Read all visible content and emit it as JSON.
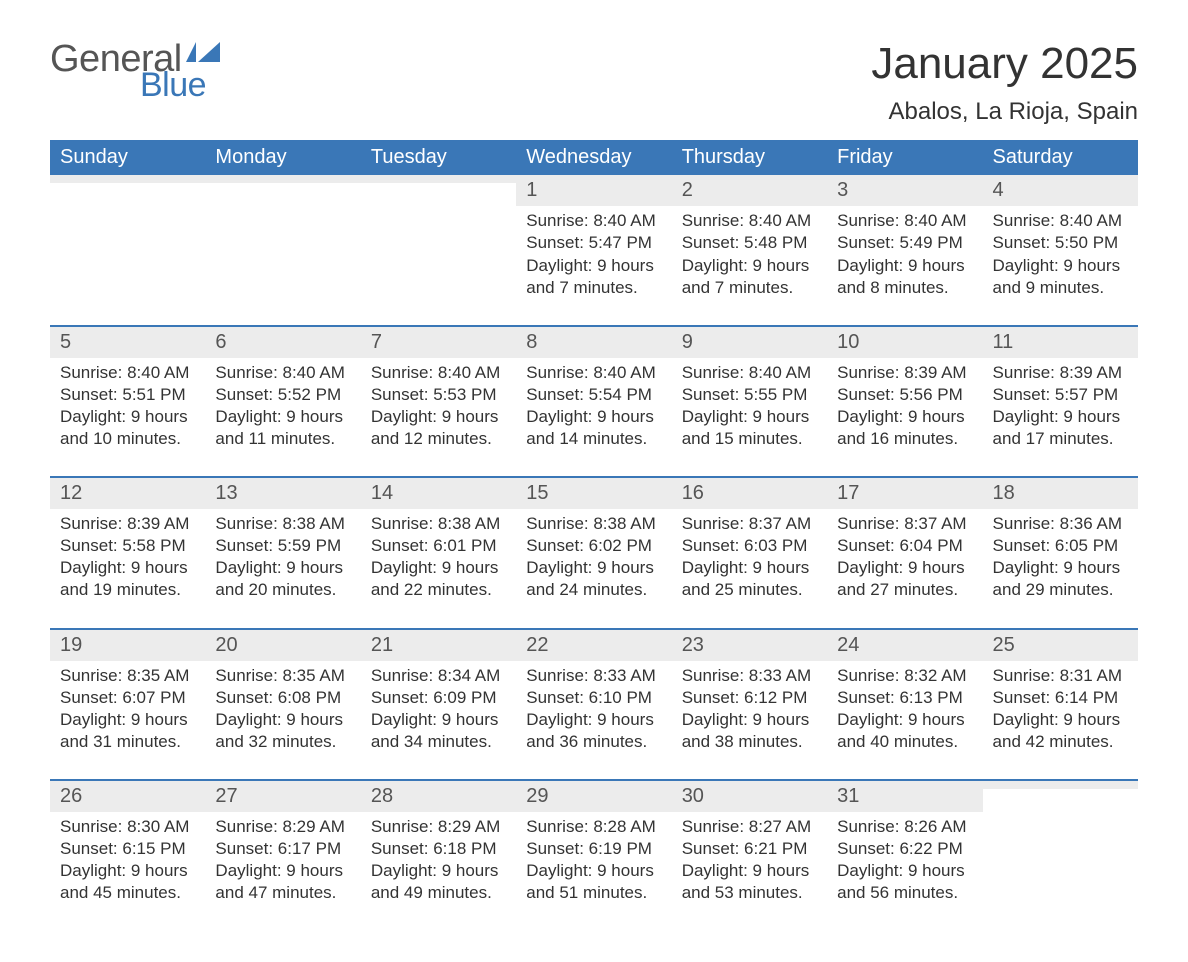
{
  "colors": {
    "header_bg": "#3a77b7",
    "header_text": "#ffffff",
    "daynum_bg": "#ececec",
    "daynum_text": "#555555",
    "body_text": "#333333",
    "week_border": "#3a77b7",
    "page_bg": "#ffffff",
    "logo_gray": "#555555",
    "logo_blue": "#3a77b7"
  },
  "typography": {
    "month_title_fontsize": 44,
    "location_fontsize": 24,
    "weekday_fontsize": 20,
    "daynum_fontsize": 20,
    "body_fontsize": 17,
    "logo_general_fontsize": 38,
    "logo_blue_fontsize": 34
  },
  "logo": {
    "text_general": "General",
    "text_blue": "Blue"
  },
  "title": "January 2025",
  "location": "Abalos, La Rioja, Spain",
  "weekdays": [
    "Sunday",
    "Monday",
    "Tuesday",
    "Wednesday",
    "Thursday",
    "Friday",
    "Saturday"
  ],
  "weeks": [
    [
      {
        "empty": true
      },
      {
        "empty": true
      },
      {
        "empty": true
      },
      {
        "day": "1",
        "sunrise": "Sunrise: 8:40 AM",
        "sunset": "Sunset: 5:47 PM",
        "dl1": "Daylight: 9 hours",
        "dl2": "and 7 minutes."
      },
      {
        "day": "2",
        "sunrise": "Sunrise: 8:40 AM",
        "sunset": "Sunset: 5:48 PM",
        "dl1": "Daylight: 9 hours",
        "dl2": "and 7 minutes."
      },
      {
        "day": "3",
        "sunrise": "Sunrise: 8:40 AM",
        "sunset": "Sunset: 5:49 PM",
        "dl1": "Daylight: 9 hours",
        "dl2": "and 8 minutes."
      },
      {
        "day": "4",
        "sunrise": "Sunrise: 8:40 AM",
        "sunset": "Sunset: 5:50 PM",
        "dl1": "Daylight: 9 hours",
        "dl2": "and 9 minutes."
      }
    ],
    [
      {
        "day": "5",
        "sunrise": "Sunrise: 8:40 AM",
        "sunset": "Sunset: 5:51 PM",
        "dl1": "Daylight: 9 hours",
        "dl2": "and 10 minutes."
      },
      {
        "day": "6",
        "sunrise": "Sunrise: 8:40 AM",
        "sunset": "Sunset: 5:52 PM",
        "dl1": "Daylight: 9 hours",
        "dl2": "and 11 minutes."
      },
      {
        "day": "7",
        "sunrise": "Sunrise: 8:40 AM",
        "sunset": "Sunset: 5:53 PM",
        "dl1": "Daylight: 9 hours",
        "dl2": "and 12 minutes."
      },
      {
        "day": "8",
        "sunrise": "Sunrise: 8:40 AM",
        "sunset": "Sunset: 5:54 PM",
        "dl1": "Daylight: 9 hours",
        "dl2": "and 14 minutes."
      },
      {
        "day": "9",
        "sunrise": "Sunrise: 8:40 AM",
        "sunset": "Sunset: 5:55 PM",
        "dl1": "Daylight: 9 hours",
        "dl2": "and 15 minutes."
      },
      {
        "day": "10",
        "sunrise": "Sunrise: 8:39 AM",
        "sunset": "Sunset: 5:56 PM",
        "dl1": "Daylight: 9 hours",
        "dl2": "and 16 minutes."
      },
      {
        "day": "11",
        "sunrise": "Sunrise: 8:39 AM",
        "sunset": "Sunset: 5:57 PM",
        "dl1": "Daylight: 9 hours",
        "dl2": "and 17 minutes."
      }
    ],
    [
      {
        "day": "12",
        "sunrise": "Sunrise: 8:39 AM",
        "sunset": "Sunset: 5:58 PM",
        "dl1": "Daylight: 9 hours",
        "dl2": "and 19 minutes."
      },
      {
        "day": "13",
        "sunrise": "Sunrise: 8:38 AM",
        "sunset": "Sunset: 5:59 PM",
        "dl1": "Daylight: 9 hours",
        "dl2": "and 20 minutes."
      },
      {
        "day": "14",
        "sunrise": "Sunrise: 8:38 AM",
        "sunset": "Sunset: 6:01 PM",
        "dl1": "Daylight: 9 hours",
        "dl2": "and 22 minutes."
      },
      {
        "day": "15",
        "sunrise": "Sunrise: 8:38 AM",
        "sunset": "Sunset: 6:02 PM",
        "dl1": "Daylight: 9 hours",
        "dl2": "and 24 minutes."
      },
      {
        "day": "16",
        "sunrise": "Sunrise: 8:37 AM",
        "sunset": "Sunset: 6:03 PM",
        "dl1": "Daylight: 9 hours",
        "dl2": "and 25 minutes."
      },
      {
        "day": "17",
        "sunrise": "Sunrise: 8:37 AM",
        "sunset": "Sunset: 6:04 PM",
        "dl1": "Daylight: 9 hours",
        "dl2": "and 27 minutes."
      },
      {
        "day": "18",
        "sunrise": "Sunrise: 8:36 AM",
        "sunset": "Sunset: 6:05 PM",
        "dl1": "Daylight: 9 hours",
        "dl2": "and 29 minutes."
      }
    ],
    [
      {
        "day": "19",
        "sunrise": "Sunrise: 8:35 AM",
        "sunset": "Sunset: 6:07 PM",
        "dl1": "Daylight: 9 hours",
        "dl2": "and 31 minutes."
      },
      {
        "day": "20",
        "sunrise": "Sunrise: 8:35 AM",
        "sunset": "Sunset: 6:08 PM",
        "dl1": "Daylight: 9 hours",
        "dl2": "and 32 minutes."
      },
      {
        "day": "21",
        "sunrise": "Sunrise: 8:34 AM",
        "sunset": "Sunset: 6:09 PM",
        "dl1": "Daylight: 9 hours",
        "dl2": "and 34 minutes."
      },
      {
        "day": "22",
        "sunrise": "Sunrise: 8:33 AM",
        "sunset": "Sunset: 6:10 PM",
        "dl1": "Daylight: 9 hours",
        "dl2": "and 36 minutes."
      },
      {
        "day": "23",
        "sunrise": "Sunrise: 8:33 AM",
        "sunset": "Sunset: 6:12 PM",
        "dl1": "Daylight: 9 hours",
        "dl2": "and 38 minutes."
      },
      {
        "day": "24",
        "sunrise": "Sunrise: 8:32 AM",
        "sunset": "Sunset: 6:13 PM",
        "dl1": "Daylight: 9 hours",
        "dl2": "and 40 minutes."
      },
      {
        "day": "25",
        "sunrise": "Sunrise: 8:31 AM",
        "sunset": "Sunset: 6:14 PM",
        "dl1": "Daylight: 9 hours",
        "dl2": "and 42 minutes."
      }
    ],
    [
      {
        "day": "26",
        "sunrise": "Sunrise: 8:30 AM",
        "sunset": "Sunset: 6:15 PM",
        "dl1": "Daylight: 9 hours",
        "dl2": "and 45 minutes."
      },
      {
        "day": "27",
        "sunrise": "Sunrise: 8:29 AM",
        "sunset": "Sunset: 6:17 PM",
        "dl1": "Daylight: 9 hours",
        "dl2": "and 47 minutes."
      },
      {
        "day": "28",
        "sunrise": "Sunrise: 8:29 AM",
        "sunset": "Sunset: 6:18 PM",
        "dl1": "Daylight: 9 hours",
        "dl2": "and 49 minutes."
      },
      {
        "day": "29",
        "sunrise": "Sunrise: 8:28 AM",
        "sunset": "Sunset: 6:19 PM",
        "dl1": "Daylight: 9 hours",
        "dl2": "and 51 minutes."
      },
      {
        "day": "30",
        "sunrise": "Sunrise: 8:27 AM",
        "sunset": "Sunset: 6:21 PM",
        "dl1": "Daylight: 9 hours",
        "dl2": "and 53 minutes."
      },
      {
        "day": "31",
        "sunrise": "Sunrise: 8:26 AM",
        "sunset": "Sunset: 6:22 PM",
        "dl1": "Daylight: 9 hours",
        "dl2": "and 56 minutes."
      },
      {
        "empty": true
      }
    ]
  ]
}
